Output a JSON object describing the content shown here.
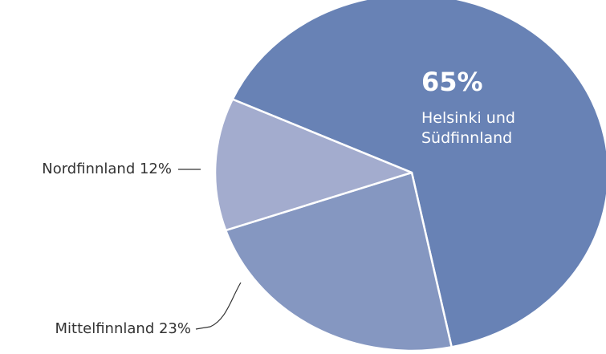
{
  "chart_data": {
    "type": "pie",
    "categories": [
      "Helsinki und Südfinnland",
      "Mittelfinnland",
      "Nordfinnland"
    ],
    "values": [
      65,
      23,
      12
    ],
    "value_labels": [
      "65%",
      "23%",
      "12%"
    ],
    "colors": [
      "#6882b5",
      "#8597c1",
      "#a3acce"
    ]
  }
}
